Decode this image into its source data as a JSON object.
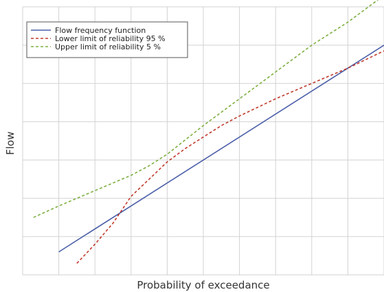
{
  "chart_data": {
    "type": "line",
    "title": "",
    "xlabel": "Probability of exceedance",
    "ylabel": "Flow",
    "xlim": [
      0,
      10
    ],
    "ylim": [
      0,
      7
    ],
    "grid": true,
    "legend_position": "top-left",
    "series": [
      {
        "name": "Flow frequency function",
        "color": "#4a5ea8",
        "style": "solid",
        "x": [
          1.0,
          10.0
        ],
        "y": [
          0.6,
          6.0
        ]
      },
      {
        "name": "Lower limit of reliability 95 %",
        "color": "#c0392b",
        "style": "dashed",
        "x": [
          1.5,
          2.0,
          2.5,
          3.0,
          3.5,
          4.0,
          4.5,
          5.0,
          5.5,
          6.0,
          7.0,
          8.0,
          9.0,
          10.0
        ],
        "y": [
          0.3,
          0.8,
          1.35,
          2.05,
          2.5,
          2.95,
          3.3,
          3.6,
          3.9,
          4.15,
          4.6,
          5.0,
          5.4,
          5.85
        ]
      },
      {
        "name": "Upper limit of reliability 5 %",
        "color": "#7cae3e",
        "style": "dashed",
        "x": [
          0.3,
          1.0,
          2.0,
          3.0,
          3.5,
          4.0,
          5.0,
          6.0,
          7.0,
          8.0,
          9.0,
          10.0
        ],
        "y": [
          1.5,
          1.8,
          2.2,
          2.6,
          2.85,
          3.15,
          3.9,
          4.6,
          5.3,
          6.0,
          6.6,
          7.3
        ]
      }
    ]
  }
}
